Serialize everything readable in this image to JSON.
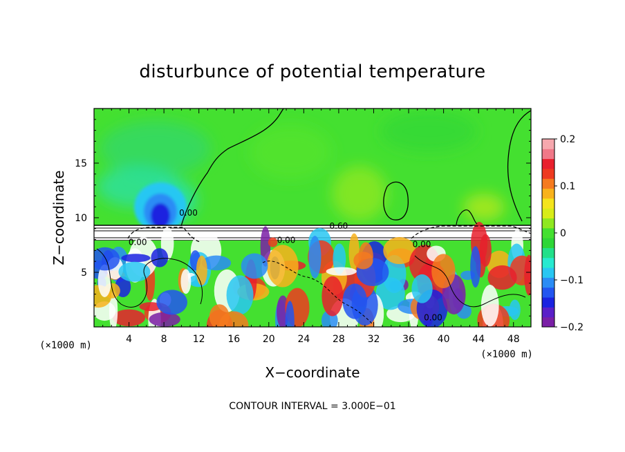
{
  "chart_data": {
    "type": "heatmap",
    "title": "disturbunce of potential temperature",
    "xlabel": "X−coordinate",
    "ylabel": "Z−coordinate",
    "x_unit": "(×1000 m)",
    "y_unit": "(×1000 m)",
    "xlim": [
      0,
      50
    ],
    "ylim": [
      0,
      20
    ],
    "x_ticks": [
      4,
      8,
      12,
      16,
      20,
      24,
      28,
      32,
      36,
      40,
      44,
      48
    ],
    "y_ticks": [
      5,
      10,
      15
    ],
    "x_tick_labels": [
      "4",
      "8",
      "12",
      "16",
      "20",
      "24",
      "28",
      "32",
      "36",
      "40",
      "44",
      "48"
    ],
    "y_tick_labels": [
      "5",
      "10",
      "15"
    ],
    "colorbar": {
      "range": [
        -0.2,
        0.2
      ],
      "ticks": [
        0.2,
        0.1,
        0,
        -0.1,
        -0.2
      ],
      "tick_labels": [
        "0.2",
        "0.1",
        "0",
        "−0.1",
        "−0.2"
      ],
      "colors": [
        "#7a1fa6",
        "#5a1fc8",
        "#1a22e0",
        "#2255f0",
        "#2a8cf5",
        "#28c7f2",
        "#27ead0",
        "#22e08a",
        "#2ed637",
        "#44e030",
        "#8fe820",
        "#d8ec18",
        "#f4e41c",
        "#f8b21c",
        "#f57a1f",
        "#ee3a20",
        "#e8202d",
        "#f07888",
        "#f6a8ae"
      ]
    },
    "contour_labels": [
      {
        "text": "0.00",
        "x": 10.8,
        "y": 10.2
      },
      {
        "text": "0.60",
        "x": 28.0,
        "y": 9.0
      },
      {
        "text": "0.00",
        "x": 22.0,
        "y": 7.7
      },
      {
        "text": "0.00",
        "x": 5.0,
        "y": 7.5
      },
      {
        "text": "0.00",
        "x": 37.5,
        "y": 7.3
      },
      {
        "text": "0.00",
        "x": 38.8,
        "y": 0.6
      }
    ],
    "contour_interval_label": "CONTOUR INTERVAL = 3.000E−01",
    "colors": {
      "background_field": "#44e030",
      "white_band": "#ffffff",
      "cyan_anomaly": "#28c7f2",
      "blue_anomaly": "#1a22e0"
    }
  }
}
